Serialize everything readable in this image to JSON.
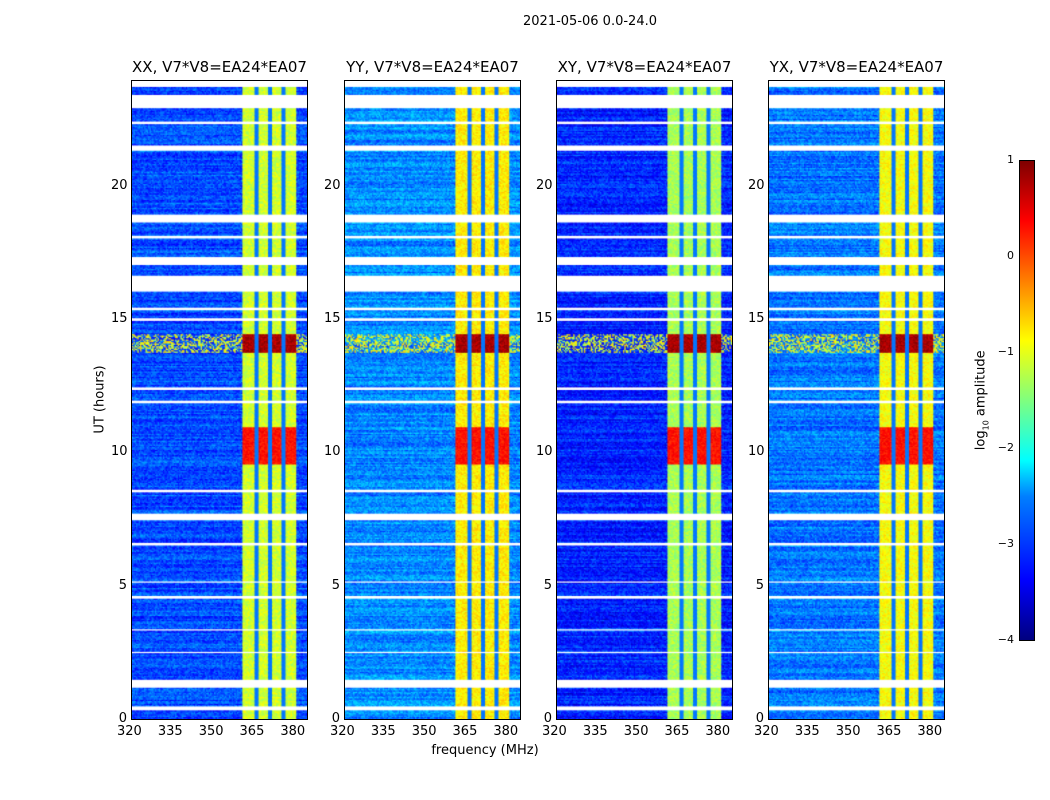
{
  "chart_data": {
    "type": "heatmap",
    "title": "2021-05-06 0.0-24.0",
    "xlabel": "frequency (MHz)",
    "ylabel": "UT (hours)",
    "xlim": [
      320,
      385
    ],
    "ylim": [
      0,
      24
    ],
    "xticks": [
      "320",
      "335",
      "350",
      "365",
      "380"
    ],
    "xtick_values": [
      320,
      335,
      350,
      365,
      380
    ],
    "yticks": [
      "0",
      "5",
      "10",
      "15",
      "20"
    ],
    "ytick_values": [
      0,
      5,
      10,
      15,
      20
    ],
    "colorbar": {
      "label": "log10 amplitude",
      "label_main": "log",
      "label_sub": "10",
      "label_rest": " amplitude",
      "range": [
        -4,
        1
      ],
      "ticks": [
        "1",
        "0",
        "−1",
        "−2",
        "−3",
        "−4"
      ],
      "tick_values": [
        1,
        0,
        -1,
        -2,
        -3,
        -4
      ],
      "colormap": "jet"
    },
    "panels": [
      {
        "title": "XX, V7*V8=EA24*EA07",
        "base": -3.0,
        "band_level": -1.1
      },
      {
        "title": "YY, V7*V8=EA24*EA07",
        "base": -2.7,
        "band_level": -0.8
      },
      {
        "title": "XY, V7*V8=EA24*EA07",
        "base": -3.2,
        "band_level": -1.3
      },
      {
        "title": "YX, V7*V8=EA24*EA07",
        "base": -2.8,
        "band_level": -0.9
      }
    ],
    "band_mhz": [
      361,
      381
    ],
    "band_gaps_mhz": [
      366,
      371,
      376
    ],
    "hot_periods_hours": [
      {
        "range": [
          13.8,
          14.5
        ],
        "level": 0.8
      },
      {
        "range": [
          9.6,
          11.0
        ],
        "level": 0.3
      }
    ],
    "flagged_hours": [
      [
        0.35,
        0.45
      ],
      [
        1.2,
        1.5
      ],
      [
        2.45,
        2.5
      ],
      [
        3.3,
        3.35
      ],
      [
        4.5,
        4.6
      ],
      [
        5.1,
        5.15
      ],
      [
        6.5,
        6.6
      ],
      [
        7.45,
        7.7
      ],
      [
        8.5,
        8.6
      ],
      [
        11.9,
        12.0
      ],
      [
        12.4,
        12.5
      ],
      [
        15.0,
        15.1
      ],
      [
        15.4,
        15.5
      ],
      [
        16.1,
        16.7
      ],
      [
        17.1,
        17.4
      ],
      [
        18.1,
        18.2
      ],
      [
        18.7,
        19.0
      ],
      [
        21.4,
        21.6
      ],
      [
        22.4,
        22.5
      ],
      [
        23.0,
        23.5
      ],
      [
        23.8,
        24.0
      ]
    ]
  }
}
